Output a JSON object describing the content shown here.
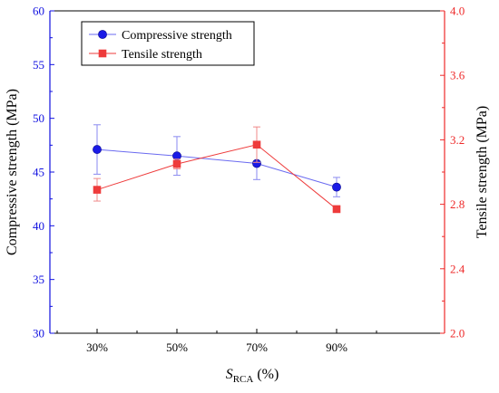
{
  "chart_data": {
    "type": "line",
    "categories": [
      "30%",
      "50%",
      "70%",
      "90%"
    ],
    "xlabel_main": "S",
    "xlabel_sub": "RCA",
    "xlabel_unit": " (%)",
    "y_left": {
      "label": "Compressive strength (MPa)",
      "lim": [
        30,
        60
      ],
      "ticks": [
        30,
        35,
        40,
        45,
        50,
        55,
        60
      ],
      "tick_labels": [
        "30",
        "35",
        "40",
        "45",
        "50",
        "55",
        "60"
      ],
      "color": "#1010e0"
    },
    "y_right": {
      "label": "Tensile strength (MPa)",
      "lim": [
        2.0,
        4.0
      ],
      "ticks": [
        2.0,
        2.4,
        2.8,
        3.2,
        3.6,
        4.0
      ],
      "tick_labels": [
        "2.0",
        "2.4",
        "2.8",
        "3.2",
        "3.6",
        "4.0"
      ],
      "color": "#ee2a2a"
    },
    "series": [
      {
        "name": "Compressive strength",
        "axis": "left",
        "marker": "circle",
        "color": "#1a1ae6",
        "values": [
          47.1,
          46.5,
          45.8,
          43.6
        ],
        "error": [
          2.3,
          1.8,
          1.5,
          0.9
        ]
      },
      {
        "name": "Tensile strength",
        "axis": "right",
        "marker": "square",
        "color": "#ee3b3b",
        "values": [
          2.89,
          3.05,
          3.17,
          2.77
        ],
        "error": [
          0.07,
          0.03,
          0.11,
          0.02
        ]
      }
    ],
    "legend_position": "top-left",
    "grid": false
  }
}
